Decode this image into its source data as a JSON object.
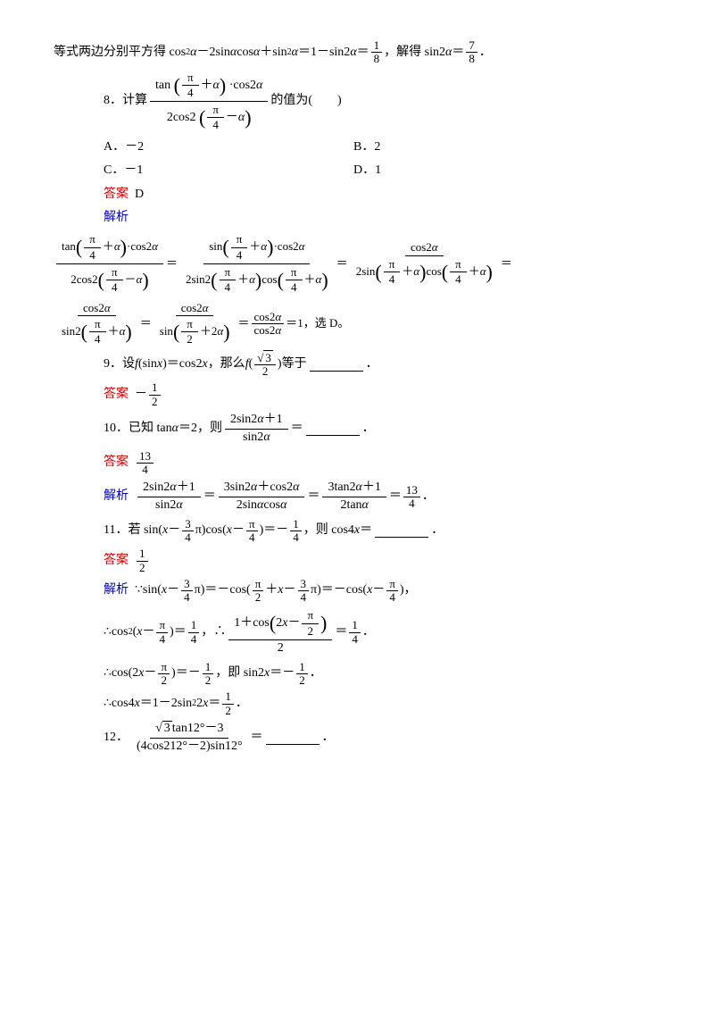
{
  "intro": {
    "text_a": "等式两边分别平方得 cos",
    "text_b": " －2sin",
    "text_c": "cos",
    "text_d": " ＋sin",
    "text_e": " ＝1－sin2",
    "text_f": " ＝",
    "text_g": "，解得 sin2",
    "text_h": " ＝",
    "period": "．",
    "alpha": "α",
    "sq": "2",
    "f1n": "1",
    "f1d": "8",
    "f2n": "7",
    "f2d": "8"
  },
  "q8": {
    "label": "8．计算",
    "tail": "的值为(　　)",
    "tan": "tan",
    "cos2a": "·cos2",
    "twocos2": "2cos2",
    "alpha": "α",
    "pi": "π",
    "four": "4",
    "optA": "A．－2",
    "optB": "B．2",
    "optC": "C．－1",
    "optD": "D．1",
    "ans_label": "答案",
    "ans_val": "D",
    "exp_label": "解析"
  },
  "q8exp": {
    "tan": "tan",
    "sin": "sin",
    "cos": "cos",
    "cos2a": "cos2",
    "twocos2": "2cos2",
    "twosin2": "2sin2",
    "twosin": "2sin",
    "sin2": "sin2",
    "pi": "π",
    "four": "4",
    "two": "2",
    "alpha": "α",
    "dot": "·",
    "plus": "＋",
    "minus": "－",
    "plus2a": "＋2",
    "eq1": "＝1，选 D。",
    "eq": "＝"
  },
  "q9": {
    "label": "9．设 ",
    "f": "f",
    "lp": "(",
    "rp": ")",
    "sinx": "sin",
    "x": "x",
    "eq": "＝cos2",
    "comma": "，那么 ",
    "tail": "等于",
    "sqrt3": "3",
    "two": "2",
    "ans_label": "答案",
    "neg": "－",
    "one": "1",
    "period": "．"
  },
  "q10": {
    "label": "10．已知 tan",
    "alpha": "α",
    "eq2": "＝2，则",
    "num": "2sin2",
    "plus1": "＋1",
    "den": "sin2",
    "eqblank": "＝",
    "period": "．",
    "ans_label": "答案",
    "a_n": "13",
    "a_d": "4",
    "exp_label": "解析",
    "n2": "3sin2",
    "plus": "＋cos2",
    "d2": "2sin",
    "cos": "cos",
    "n3": "3tan2",
    "p1": "＋1",
    "d3": "2tan",
    "eq": "＝"
  },
  "q11": {
    "label": "11．若 sin(",
    "x": "x",
    "minus": "－",
    "three": "3",
    "four": "4",
    "pi": "π",
    "mid": ")cos(",
    "rp": ")＝－",
    "one": "1",
    "comma": "，则 cos4",
    "eqblank": "＝",
    "period": "．",
    "ans_label": "答案",
    "a_n": "1",
    "a_d": "2",
    "exp_label": "解析",
    "because": "∵sin(",
    "eqneg": ")＝－cos(",
    "two": "2",
    "plus": "＋",
    "eqneg2": ")＝－cos(",
    "r2": ")，",
    "so_cos2": "∴cos",
    "sq": "2",
    "lp": "(",
    "eq14": ")＝",
    "so": "，∴",
    "oneplus": "1＋cos",
    "twoxm": "2",
    "eq14b": "＝",
    "so_cos": "∴cos(2",
    "eqneghalf": ")＝－",
    "ie": "，即 sin2",
    "eqneghalf2": "＝－",
    "so_cos4": "∴cos4",
    "eq1m2s2": "＝1－2sin",
    "twox": "2",
    "eqhalf": "＝"
  },
  "q12": {
    "label": "12．",
    "sqrt3": "3",
    "tan12": "tan12°",
    "m3": "－3",
    "d_a": "4cos212°",
    "d_m2": "－2",
    "d_s": "sin12°",
    "eqblank": "＝",
    "period": "．"
  }
}
